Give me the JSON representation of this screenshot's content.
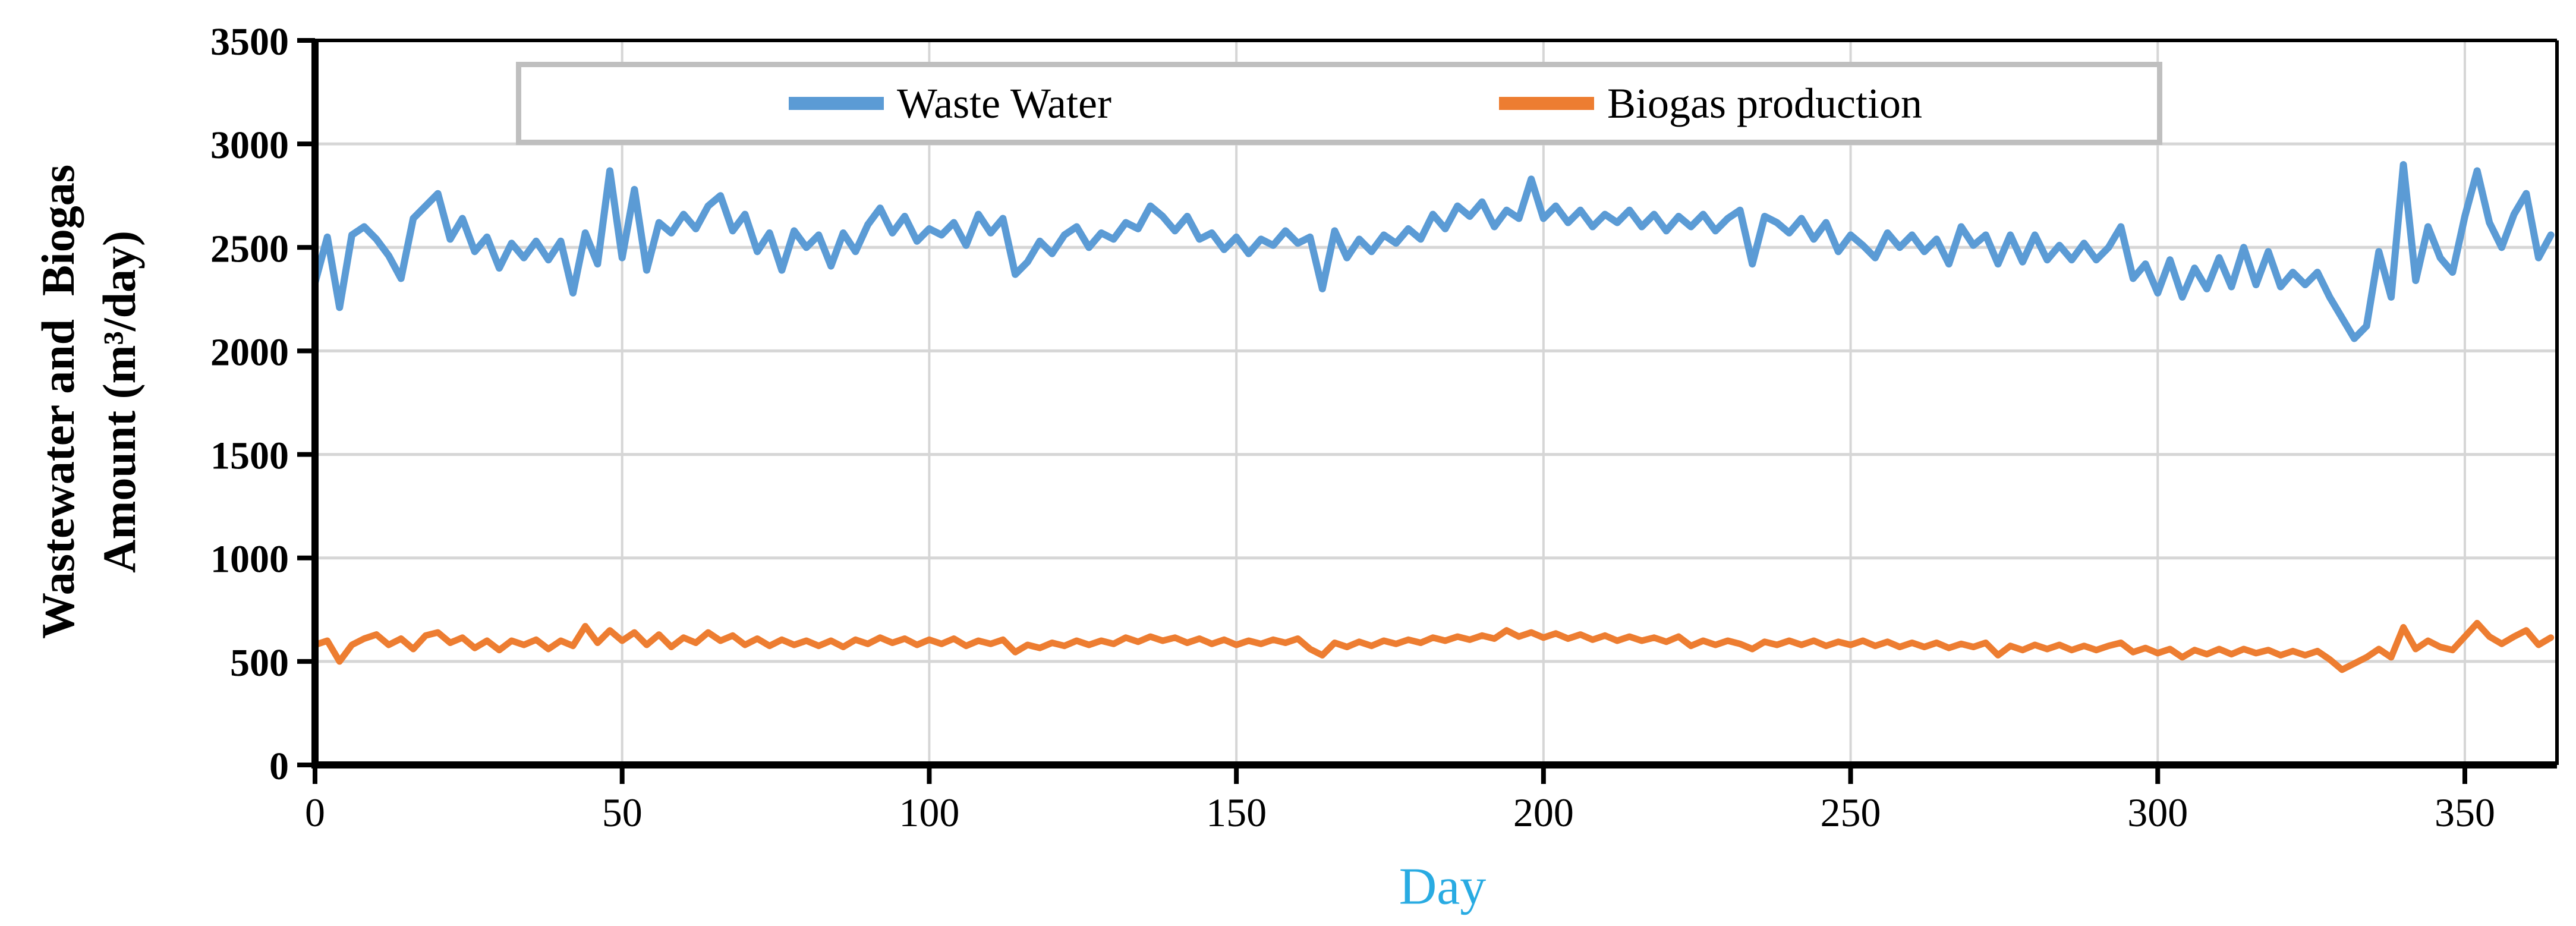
{
  "page": {
    "background": "#FFFFFF"
  },
  "axis": {
    "x_title": "Day",
    "x_title_color": "#29ABE2",
    "y_title_line1": "Wastewater and  Biogas",
    "y_title_line2": "Amount (m³/day)"
  },
  "legend": {
    "items": [
      {
        "label": "Waste Water",
        "color": "#5B9BD5"
      },
      {
        "label": "Biogas production",
        "color": "#ED7D31"
      }
    ]
  },
  "colors": {
    "gridline": "#D6D6D6",
    "axis": "#000000",
    "tick_label": "#000000",
    "legend_border": "#BFBFBF",
    "waste_water": "#5B9BD5",
    "biogas": "#ED7D31",
    "day_label": "#29ABE2"
  },
  "chart_data": {
    "type": "line",
    "title": "",
    "xlabel": "Day",
    "ylabel": "Wastewater and  Biogas Amount (m³/day)",
    "xlim": [
      0,
      365
    ],
    "ylim": [
      0,
      3500
    ],
    "x_ticks": [
      0,
      50,
      100,
      150,
      200,
      250,
      300,
      350
    ],
    "y_ticks": [
      0,
      500,
      1000,
      1500,
      2000,
      2500,
      3000,
      3500
    ],
    "grid": true,
    "legend_position": "top-inside",
    "x": {
      "start": 0,
      "step": 2,
      "count": 183
    },
    "series": [
      {
        "name": "Waste Water",
        "color": "#5B9BD5",
        "values": [
          2330,
          2550,
          2210,
          2560,
          2600,
          2540,
          2460,
          2350,
          2640,
          2700,
          2760,
          2540,
          2640,
          2480,
          2550,
          2400,
          2520,
          2450,
          2530,
          2440,
          2530,
          2280,
          2570,
          2420,
          2870,
          2450,
          2780,
          2390,
          2620,
          2570,
          2660,
          2590,
          2700,
          2750,
          2580,
          2660,
          2480,
          2570,
          2390,
          2580,
          2500,
          2560,
          2410,
          2570,
          2480,
          2610,
          2690,
          2570,
          2650,
          2530,
          2590,
          2560,
          2620,
          2510,
          2660,
          2570,
          2640,
          2370,
          2430,
          2530,
          2470,
          2560,
          2600,
          2500,
          2570,
          2540,
          2620,
          2590,
          2700,
          2650,
          2580,
          2650,
          2540,
          2570,
          2490,
          2550,
          2470,
          2540,
          2510,
          2580,
          2520,
          2550,
          2300,
          2580,
          2450,
          2540,
          2480,
          2560,
          2520,
          2590,
          2540,
          2660,
          2590,
          2700,
          2650,
          2720,
          2600,
          2680,
          2640,
          2830,
          2640,
          2700,
          2620,
          2680,
          2600,
          2660,
          2620,
          2680,
          2600,
          2660,
          2580,
          2650,
          2600,
          2660,
          2580,
          2640,
          2680,
          2420,
          2650,
          2620,
          2570,
          2640,
          2540,
          2620,
          2480,
          2560,
          2510,
          2450,
          2570,
          2500,
          2560,
          2480,
          2540,
          2420,
          2600,
          2510,
          2560,
          2420,
          2560,
          2430,
          2560,
          2440,
          2510,
          2440,
          2520,
          2440,
          2500,
          2600,
          2350,
          2420,
          2280,
          2440,
          2260,
          2400,
          2300,
          2450,
          2310,
          2500,
          2320,
          2480,
          2310,
          2380,
          2320,
          2380,
          2260,
          2160,
          2060,
          2120,
          2480,
          2260,
          2900,
          2340,
          2600,
          2450,
          2380,
          2650,
          2870,
          2620,
          2500,
          2660,
          2760,
          2450,
          2560
        ]
      },
      {
        "name": "Biogas production",
        "color": "#ED7D31",
        "values": [
          580,
          600,
          500,
          580,
          610,
          630,
          580,
          610,
          560,
          625,
          640,
          590,
          615,
          565,
          600,
          555,
          600,
          580,
          605,
          560,
          600,
          575,
          670,
          590,
          650,
          600,
          640,
          580,
          630,
          570,
          615,
          590,
          640,
          600,
          625,
          580,
          610,
          575,
          605,
          580,
          600,
          575,
          600,
          570,
          605,
          585,
          615,
          590,
          610,
          580,
          605,
          585,
          610,
          575,
          600,
          585,
          605,
          545,
          580,
          565,
          590,
          575,
          600,
          580,
          600,
          585,
          615,
          595,
          620,
          600,
          615,
          590,
          610,
          585,
          605,
          580,
          600,
          585,
          605,
          590,
          610,
          560,
          530,
          590,
          570,
          595,
          575,
          600,
          585,
          605,
          590,
          615,
          600,
          620,
          605,
          625,
          610,
          650,
          620,
          640,
          615,
          635,
          610,
          630,
          605,
          625,
          600,
          620,
          600,
          615,
          595,
          620,
          575,
          600,
          580,
          600,
          585,
          560,
          595,
          580,
          600,
          580,
          600,
          575,
          595,
          580,
          600,
          575,
          595,
          570,
          590,
          570,
          590,
          565,
          585,
          570,
          590,
          530,
          575,
          555,
          580,
          560,
          580,
          555,
          575,
          555,
          575,
          590,
          545,
          565,
          540,
          560,
          520,
          555,
          535,
          560,
          535,
          560,
          540,
          555,
          530,
          550,
          530,
          550,
          510,
          460,
          490,
          520,
          560,
          520,
          665,
          560,
          600,
          570,
          555,
          620,
          685,
          620,
          585,
          620,
          650,
          580,
          615
        ]
      }
    ]
  }
}
